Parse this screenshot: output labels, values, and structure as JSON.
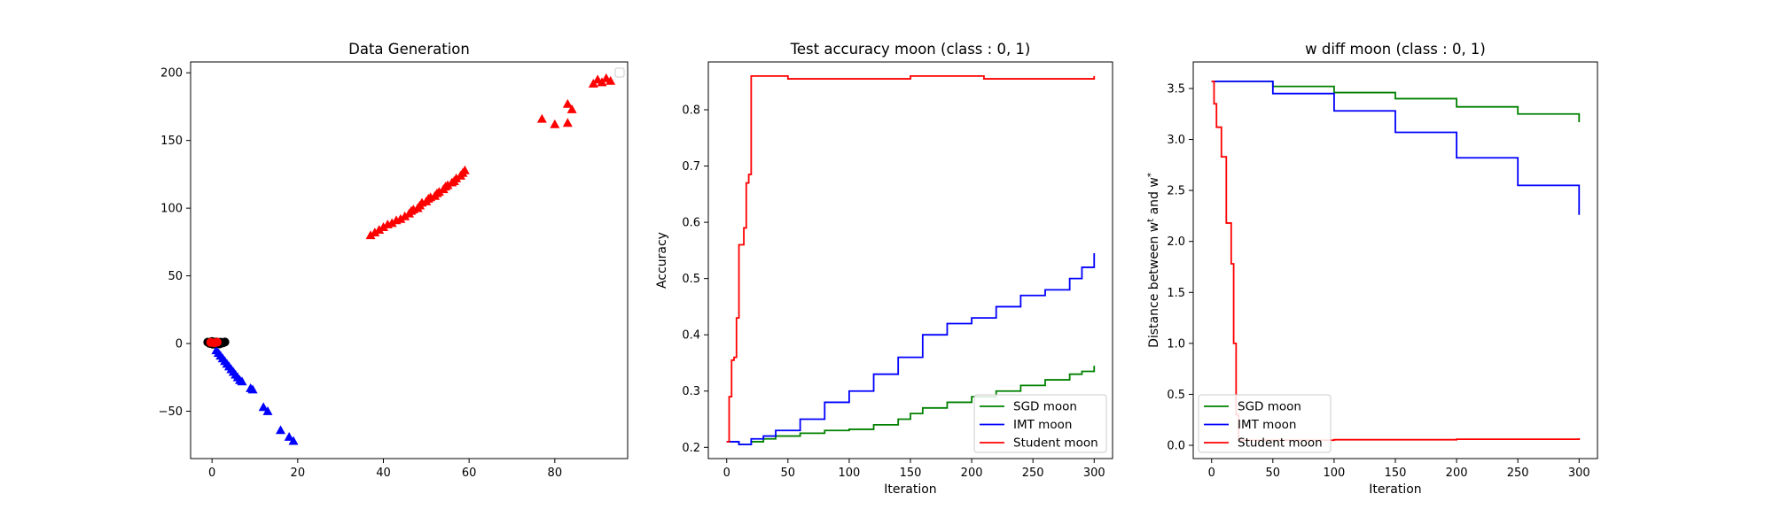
{
  "chart_data": [
    {
      "type": "scatter",
      "title": "Data Generation",
      "xlabel": "",
      "ylabel": "",
      "xlim": [
        -5,
        97
      ],
      "ylim": [
        -85,
        208
      ],
      "xticks": [
        0,
        20,
        40,
        60,
        80
      ],
      "yticks": [
        -50,
        0,
        50,
        100,
        150,
        200
      ],
      "legend": {
        "position": "upper right",
        "entries": []
      },
      "series": [
        {
          "marker": "triangle",
          "color": "#ff0000",
          "points": [
            [
              37,
              80
            ],
            [
              38,
              82
            ],
            [
              39,
              84
            ],
            [
              40,
              86
            ],
            [
              41,
              88
            ],
            [
              42,
              89
            ],
            [
              43,
              91
            ],
            [
              44,
              92
            ],
            [
              45,
              94
            ],
            [
              46,
              96
            ],
            [
              46.5,
              98
            ],
            [
              47,
              99
            ],
            [
              48,
              100
            ],
            [
              48.5,
              102
            ],
            [
              49,
              104
            ],
            [
              50,
              105
            ],
            [
              50.5,
              107
            ],
            [
              51,
              108
            ],
            [
              52,
              109
            ],
            [
              52.5,
              111
            ],
            [
              53,
              112
            ],
            [
              54,
              114
            ],
            [
              54.5,
              116
            ],
            [
              55,
              117
            ],
            [
              56,
              119
            ],
            [
              56.5,
              120
            ],
            [
              57,
              122
            ],
            [
              58,
              124
            ],
            [
              58.5,
              126
            ],
            [
              59,
              128
            ],
            [
              77,
              166
            ],
            [
              80,
              162
            ],
            [
              83,
              163
            ],
            [
              83,
              177
            ],
            [
              84,
              173
            ],
            [
              89,
              192
            ],
            [
              90,
              195
            ],
            [
              91,
              193
            ],
            [
              92,
              196
            ],
            [
              93,
              194
            ]
          ]
        },
        {
          "marker": "triangle",
          "color": "#0000ff",
          "points": [
            [
              1,
              -5
            ],
            [
              1.5,
              -7
            ],
            [
              2,
              -9
            ],
            [
              2.5,
              -11
            ],
            [
              3,
              -13
            ],
            [
              3.5,
              -15
            ],
            [
              4,
              -17
            ],
            [
              4.5,
              -19
            ],
            [
              5,
              -21
            ],
            [
              5.5,
              -23
            ],
            [
              6,
              -25
            ],
            [
              6.5,
              -27
            ],
            [
              7,
              -28
            ],
            [
              9,
              -33
            ],
            [
              9.5,
              -34
            ],
            [
              12,
              -47
            ],
            [
              13,
              -50
            ],
            [
              16,
              -64
            ],
            [
              18,
              -69
            ],
            [
              19,
              -72
            ]
          ]
        },
        {
          "marker": "circle",
          "color": "#000000",
          "points": [
            [
              -1,
              1
            ],
            [
              -0.5,
              0
            ],
            [
              0,
              1.5
            ],
            [
              0.5,
              0.5
            ],
            [
              1,
              1.2
            ],
            [
              1.5,
              0.2
            ],
            [
              2,
              1
            ],
            [
              2.5,
              0.4
            ],
            [
              3,
              1.1
            ],
            [
              0.2,
              -0.5
            ],
            [
              1.8,
              -0.3
            ]
          ]
        },
        {
          "marker": "circle",
          "color": "#ff0000",
          "points": [
            [
              -0.3,
              0.8
            ],
            [
              0.6,
              0.5
            ],
            [
              1.2,
              1.0
            ]
          ]
        }
      ]
    },
    {
      "type": "line",
      "title": "Test accuracy moon (class : 0, 1)",
      "xlabel": "Iteration",
      "ylabel": "Accuracy",
      "xlim": [
        -15,
        315
      ],
      "ylim": [
        0.18,
        0.885
      ],
      "xticks": [
        0,
        50,
        100,
        150,
        200,
        250,
        300
      ],
      "yticks": [
        0.2,
        0.3,
        0.4,
        0.5,
        0.6,
        0.7,
        0.8
      ],
      "legend": {
        "position": "lower right"
      },
      "series": [
        {
          "name": "SGD moon",
          "color": "#008000",
          "x": [
            0,
            10,
            20,
            30,
            40,
            60,
            80,
            100,
            120,
            140,
            150,
            160,
            180,
            200,
            220,
            240,
            260,
            280,
            290,
            300
          ],
          "y": [
            0.21,
            0.205,
            0.21,
            0.215,
            0.22,
            0.225,
            0.23,
            0.232,
            0.24,
            0.25,
            0.26,
            0.27,
            0.28,
            0.29,
            0.3,
            0.31,
            0.32,
            0.33,
            0.335,
            0.345
          ]
        },
        {
          "name": "IMT moon",
          "color": "#0000ff",
          "x": [
            0,
            10,
            20,
            30,
            40,
            60,
            80,
            100,
            120,
            140,
            160,
            180,
            200,
            220,
            240,
            260,
            280,
            290,
            300
          ],
          "y": [
            0.21,
            0.205,
            0.215,
            0.22,
            0.23,
            0.25,
            0.28,
            0.3,
            0.33,
            0.36,
            0.4,
            0.42,
            0.43,
            0.45,
            0.47,
            0.48,
            0.5,
            0.52,
            0.545
          ]
        },
        {
          "name": "Student moon",
          "color": "#ff0000",
          "x": [
            0,
            2,
            4,
            6,
            8,
            10,
            12,
            14,
            16,
            18,
            20,
            50,
            150,
            210,
            300
          ],
          "y": [
            0.21,
            0.29,
            0.355,
            0.36,
            0.43,
            0.56,
            0.56,
            0.59,
            0.67,
            0.685,
            0.86,
            0.855,
            0.86,
            0.855,
            0.86
          ]
        }
      ]
    },
    {
      "type": "line",
      "title": "w diff moon (class : 0, 1)",
      "xlabel": "Iteration",
      "ylabel": "Distance between w",
      "ylabel_sup_t": "t",
      "ylabel_mid": " and w",
      "ylabel_sup_star": "*",
      "xlim": [
        -15,
        315
      ],
      "ylim": [
        -0.13,
        3.76
      ],
      "xticks": [
        0,
        50,
        100,
        150,
        200,
        250,
        300
      ],
      "yticks": [
        0.0,
        0.5,
        1.0,
        1.5,
        2.0,
        2.5,
        3.0,
        3.5
      ],
      "legend": {
        "position": "lower left"
      },
      "series": [
        {
          "name": "SGD moon",
          "color": "#008000",
          "x": [
            0,
            50,
            100,
            150,
            200,
            250,
            300
          ],
          "y": [
            3.57,
            3.52,
            3.46,
            3.4,
            3.32,
            3.25,
            3.17
          ]
        },
        {
          "name": "IMT moon",
          "color": "#0000ff",
          "x": [
            0,
            50,
            100,
            150,
            200,
            250,
            300
          ],
          "y": [
            3.57,
            3.45,
            3.28,
            3.07,
            2.82,
            2.55,
            2.26
          ]
        },
        {
          "name": "Student moon",
          "color": "#ff0000",
          "x": [
            0,
            2,
            4,
            6,
            8,
            10,
            12,
            14,
            16,
            18,
            20,
            22,
            100,
            200,
            300
          ],
          "y": [
            3.57,
            3.35,
            3.12,
            3.12,
            2.83,
            2.83,
            2.18,
            2.18,
            1.78,
            1.0,
            0.3,
            0.05,
            0.055,
            0.06,
            0.07
          ]
        }
      ]
    }
  ]
}
